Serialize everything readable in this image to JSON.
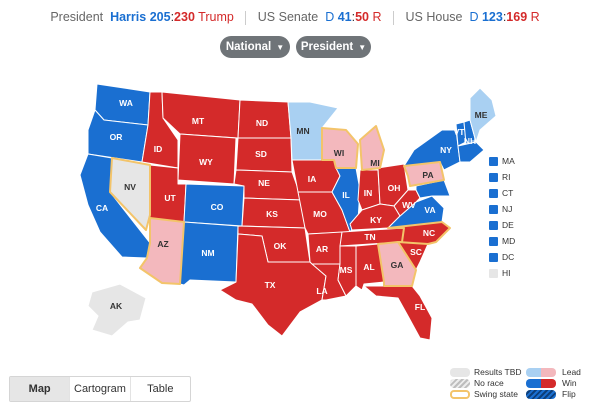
{
  "header": {
    "president_label": "President",
    "president_dem": "Harris",
    "president_dem_count": "205",
    "president_sep": ":",
    "president_rep_count": "230",
    "president_rep": "Trump",
    "senate_label": "US Senate",
    "senate_dem": "D",
    "senate_dem_count": "41",
    "senate_sep": ":",
    "senate_rep_count": "50",
    "senate_rep": "R",
    "house_label": "US House",
    "house_dem": "D",
    "house_dem_count": "123",
    "house_sep": ":",
    "house_rep_count": "169",
    "house_rep": "R"
  },
  "filters": {
    "scope_label": "National",
    "race_label": "President"
  },
  "states": {
    "WA": "WA",
    "OR": "OR",
    "CA": "CA",
    "NV": "NV",
    "ID": "ID",
    "MT": "MT",
    "WY": "WY",
    "UT": "UT",
    "AZ": "AZ",
    "CO": "CO",
    "NM": "NM",
    "ND": "ND",
    "SD": "SD",
    "NE": "NE",
    "KS": "KS",
    "OK": "OK",
    "TX": "TX",
    "MN": "MN",
    "IA": "IA",
    "MO": "MO",
    "AR": "AR",
    "LA": "LA",
    "WI": "WI",
    "IL": "IL",
    "MI": "MI",
    "IN": "IN",
    "OH": "OH",
    "KY": "KY",
    "TN": "TN",
    "MS": "MS",
    "AL": "AL",
    "GA": "GA",
    "FL": "FL",
    "SC": "SC",
    "NC": "NC",
    "VA": "VA",
    "WV": "WV",
    "PA": "PA",
    "NY": "NY",
    "VT": "VT",
    "NH": "NH",
    "ME": "ME",
    "AK": "AK"
  },
  "small_states": [
    {
      "label": "MA",
      "color": "#1a6fd1"
    },
    {
      "label": "RI",
      "color": "#1a6fd1"
    },
    {
      "label": "CT",
      "color": "#1a6fd1"
    },
    {
      "label": "NJ",
      "color": "#1a6fd1"
    },
    {
      "label": "DE",
      "color": "#1a6fd1"
    },
    {
      "label": "MD",
      "color": "#1a6fd1"
    },
    {
      "label": "DC",
      "color": "#1a6fd1"
    },
    {
      "label": "HI",
      "color": "#e6e6e6"
    }
  ],
  "view_tabs": [
    {
      "label": "Map",
      "active": true
    },
    {
      "label": "Cartogram",
      "active": false
    },
    {
      "label": "Table",
      "active": false
    }
  ],
  "legend": {
    "results_tbd": "Results TBD",
    "no_race": "No race",
    "swing_state": "Swing state",
    "lead": "Lead",
    "win": "Win",
    "flip": "Flip"
  },
  "colors": {
    "dem_win": "#1a6fd1",
    "rep_win": "#d42a2a",
    "dem_lead": "#a9d0f2",
    "rep_lead": "#f3b8bd",
    "tbd": "#e6e6e6",
    "swing_outline": "#f3c46a"
  }
}
